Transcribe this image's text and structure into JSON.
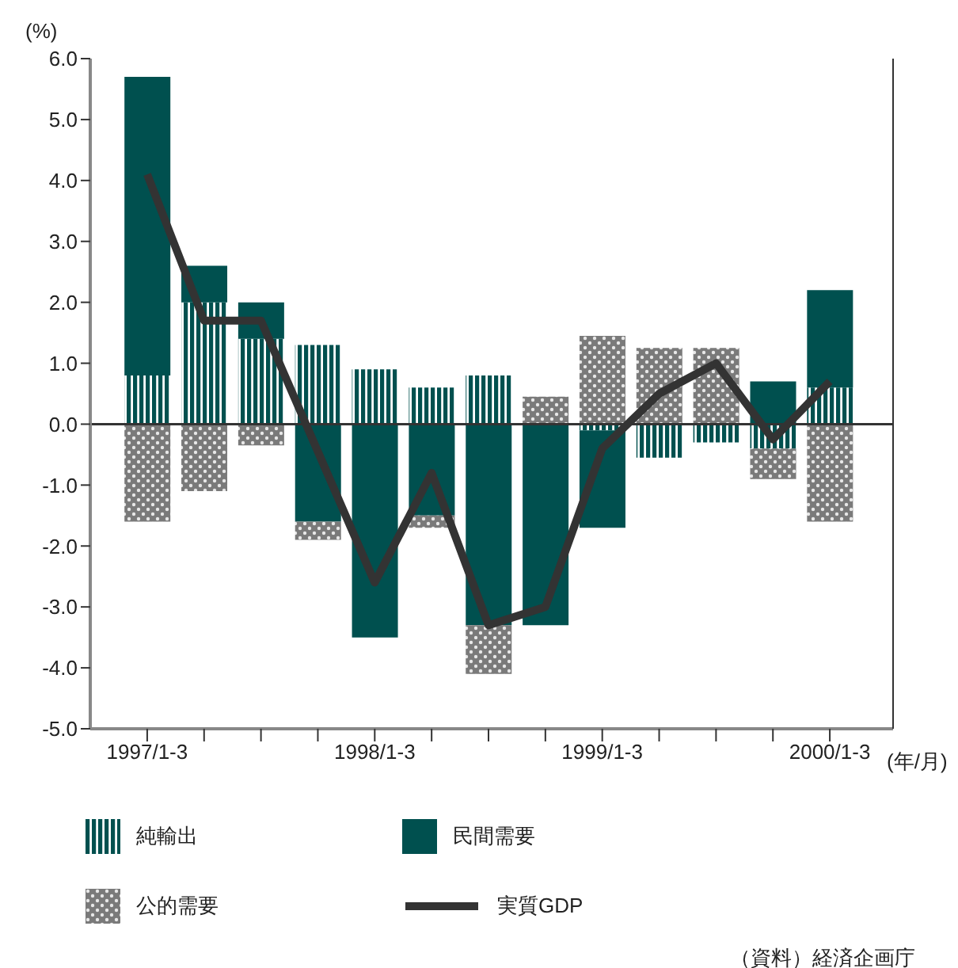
{
  "chart_data": {
    "type": "bar",
    "stacked": true,
    "ylabel": "(%)",
    "xlabel": "(年/月)",
    "categories": [
      "1997/1-3",
      null,
      null,
      null,
      "1998/1-3",
      null,
      null,
      null,
      "1999/1-3",
      null,
      null,
      null,
      "2000/1-3"
    ],
    "series": [
      {
        "name": "純輸出",
        "color": "#00504f",
        "values": [
          0.8,
          2.0,
          1.4,
          1.3,
          0.9,
          0.6,
          0.8,
          0,
          -0.1,
          -0.55,
          -0.3,
          -0.4,
          0.6
        ]
      },
      {
        "name": "民間需要",
        "color": "#00504f",
        "values": [
          4.9,
          0.6,
          0.6,
          -1.6,
          -3.5,
          -1.5,
          -3.3,
          -3.3,
          -1.6,
          0,
          0,
          0.7,
          1.6
        ]
      },
      {
        "name": "公的需要",
        "color": "#7a7a7a",
        "values": [
          -1.6,
          -1.1,
          -0.35,
          -0.3,
          0,
          -0.2,
          -0.8,
          0.45,
          1.45,
          1.25,
          1.25,
          -0.5,
          -1.6
        ]
      },
      {
        "name": "実質GDP",
        "type": "line",
        "color": "#333333",
        "values": [
          4.1,
          1.7,
          1.7,
          -0.45,
          -2.6,
          -0.8,
          -3.3,
          -3.0,
          -0.4,
          0.5,
          1.0,
          -0.25,
          0.7
        ]
      }
    ],
    "ylim": [
      -5,
      6
    ],
    "yticks": [
      {
        "value": -5,
        "label": "-5.0"
      },
      {
        "value": -4,
        "label": "-4.0"
      },
      {
        "value": -3,
        "label": "-3.0"
      },
      {
        "value": -2,
        "label": "-2.0"
      },
      {
        "value": -1,
        "label": "-1.0"
      },
      {
        "value": 0,
        "label": "0.0"
      },
      {
        "value": 1,
        "label": "1.0"
      },
      {
        "value": 2,
        "label": "2.0"
      },
      {
        "value": 3,
        "label": "3.0"
      },
      {
        "value": 4,
        "label": "4.0"
      },
      {
        "value": 5,
        "label": "5.0"
      },
      {
        "value": 6,
        "label": "6.0"
      }
    ],
    "ref_lines": [
      {
        "axis": "y",
        "value": 0,
        "color": "#333333"
      }
    ],
    "marker": "none",
    "legend": "bottom",
    "grid": false,
    "annotations": [
      "（資料）経済企画庁"
    ]
  }
}
